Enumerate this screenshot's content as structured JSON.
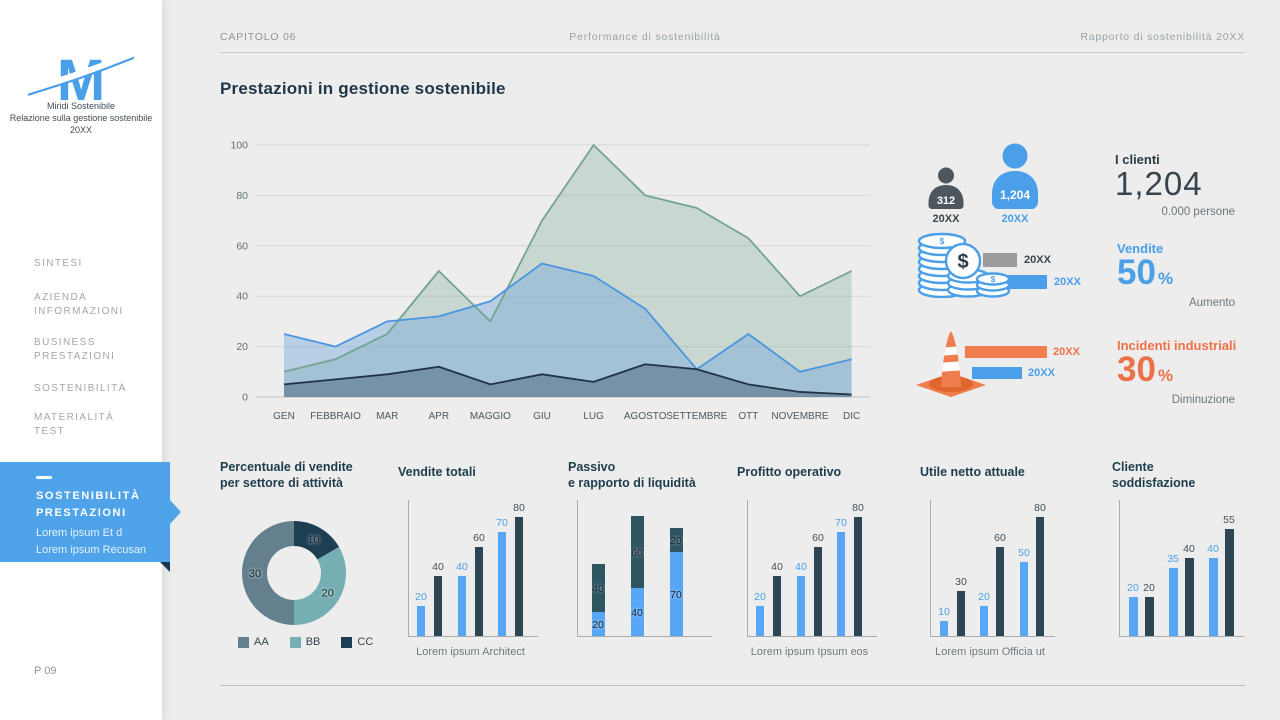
{
  "palette": {
    "blue": "#4a9fe8",
    "bar_blue": "#58a7f5",
    "bar_dark": "#2e4653",
    "teal_dark": "#2d5661",
    "label_dark": "#43505a",
    "orange": "#ee7048",
    "bar_orange": "#ef7d4d",
    "gray_bar": "#9c9c9c",
    "person_gray": "#4e565e"
  },
  "header": {
    "chapter": "CAPITOLO 06",
    "center": "Performance di sostenibilità",
    "right": "Rapporto di sostenibilità 20XX"
  },
  "sidebar": {
    "logo_letter": "M",
    "org_line1": "Miridi Sostenibile",
    "org_line2": "Relazione sulla gestione sostenibile",
    "org_line3": "20XX",
    "items": [
      {
        "lines": [
          "SINTESI"
        ]
      },
      {
        "lines": [
          "AZIENDA",
          "INFORMAZIONI"
        ]
      },
      {
        "lines": [
          "BUSINESS",
          "PRESTAZIONI"
        ]
      },
      {
        "lines": [
          "SOSTENIBILITÀ"
        ]
      },
      {
        "lines": [
          "MATERIALITÀ",
          "TEST"
        ]
      }
    ],
    "active": {
      "title_line1": "SOSTENIBILITÀ",
      "title_line2": "PRESTAZIONI",
      "sub_line1": "Lorem ipsum Et d",
      "sub_line2": "Lorem ipsum Recusan"
    },
    "page_number": "P 09"
  },
  "main": {
    "title": "Prestazioni in gestione sostenibile"
  },
  "stats": {
    "clients": {
      "small_icon_value": "312",
      "small_icon_year": "20XX",
      "big_icon_value": "1,204",
      "big_icon_year": "20XX",
      "heading": "I clienti",
      "number": "1,204",
      "caption": "0.000 persone"
    },
    "sales": {
      "gray_bar_label": "20XX",
      "blue_bar_label": "20XX",
      "heading": "Vendite",
      "number": "50",
      "percent_sign": "%",
      "caption": "Aumento",
      "dollar_sign": "$"
    },
    "incidents": {
      "orange_bar_label": "20XX",
      "blue_bar_label": "20XX",
      "heading": "Incidenti industriali",
      "number": "30",
      "percent_sign": "%",
      "caption": "Diminuzione"
    }
  },
  "chart_data": [
    {
      "type": "area",
      "x": [
        "GEN",
        "FEBBRAIO",
        "MAR",
        "APR",
        "MAGGIO",
        "GIU",
        "LUG",
        "AGOSTO",
        "SETTEMBRE",
        "OTT",
        "NOVEMBRE",
        "DIC"
      ],
      "ylim": [
        0,
        100
      ],
      "yticks": [
        0,
        20,
        40,
        60,
        80,
        100
      ],
      "grid": true,
      "series": [
        {
          "name": "green",
          "color": "#74a491",
          "fill": "rgba(125,168,150,0.32)",
          "values": [
            10,
            15,
            25,
            50,
            30,
            70,
            100,
            80,
            75,
            63,
            40,
            50
          ]
        },
        {
          "name": "blue",
          "color": "#4b95e0",
          "fill": "rgba(120,168,220,0.45)",
          "values": [
            25,
            20,
            30,
            32,
            38,
            53,
            48,
            35,
            11,
            25,
            10,
            15
          ]
        },
        {
          "name": "dark",
          "color": "#203448",
          "fill": "rgba(52,80,104,0.42)",
          "values": [
            5,
            7,
            9,
            12,
            5,
            9,
            6,
            13,
            11,
            5,
            2,
            1
          ]
        }
      ]
    },
    {
      "type": "pie",
      "title_lines": [
        "Percentuale di vendite",
        "per settore di attività"
      ],
      "segments": [
        {
          "label": "CC",
          "value": 10,
          "color": "#1e3e54"
        },
        {
          "label": "BB",
          "value": 20,
          "color": "#75aeb3"
        },
        {
          "label": "AA",
          "value": 30,
          "color": "#64808f"
        }
      ],
      "legend": [
        {
          "label": "AA",
          "color": "#64808f"
        },
        {
          "label": "BB",
          "color": "#75aeb3"
        },
        {
          "label": "CC",
          "color": "#1e3e54"
        }
      ]
    },
    {
      "type": "bar",
      "title": "Vendite totali",
      "values": [
        20,
        40,
        40,
        60,
        70,
        80
      ],
      "color_pattern": [
        "bar_blue",
        "bar_dark"
      ],
      "label_color_pattern": [
        "blue",
        "label_dark"
      ],
      "caption": "Lorem ipsum Architect"
    },
    {
      "type": "stacked-bar",
      "title_lines": [
        "Passivo",
        "e rapporto di liquidità"
      ],
      "bars": [
        {
          "bottom": 20,
          "top": 40
        },
        {
          "bottom": 40,
          "top": 60
        },
        {
          "bottom": 70,
          "top": 20
        }
      ],
      "bottom_color": "bar_blue",
      "top_color": "teal_dark"
    },
    {
      "type": "bar",
      "title": "Profitto operativo",
      "values": [
        20,
        40,
        40,
        60,
        70,
        80
      ],
      "color_pattern": [
        "bar_blue",
        "bar_dark"
      ],
      "label_color_pattern": [
        "blue",
        "label_dark"
      ],
      "caption": "Lorem ipsum Ipsum eos"
    },
    {
      "type": "bar",
      "title": "Utile netto attuale",
      "values": [
        10,
        30,
        20,
        60,
        50,
        80
      ],
      "color_pattern": [
        "bar_blue",
        "bar_dark"
      ],
      "label_color_pattern": [
        "blue",
        "label_dark"
      ],
      "caption": "Lorem ipsum Officia ut"
    },
    {
      "type": "bar",
      "title_lines": [
        "Cliente",
        "soddisfazione"
      ],
      "values": [
        20,
        20,
        35,
        40,
        40,
        55
      ],
      "color_pattern": [
        "bar_blue",
        "bar_dark"
      ],
      "label_color_pattern": [
        "blue",
        "label_dark"
      ]
    }
  ]
}
